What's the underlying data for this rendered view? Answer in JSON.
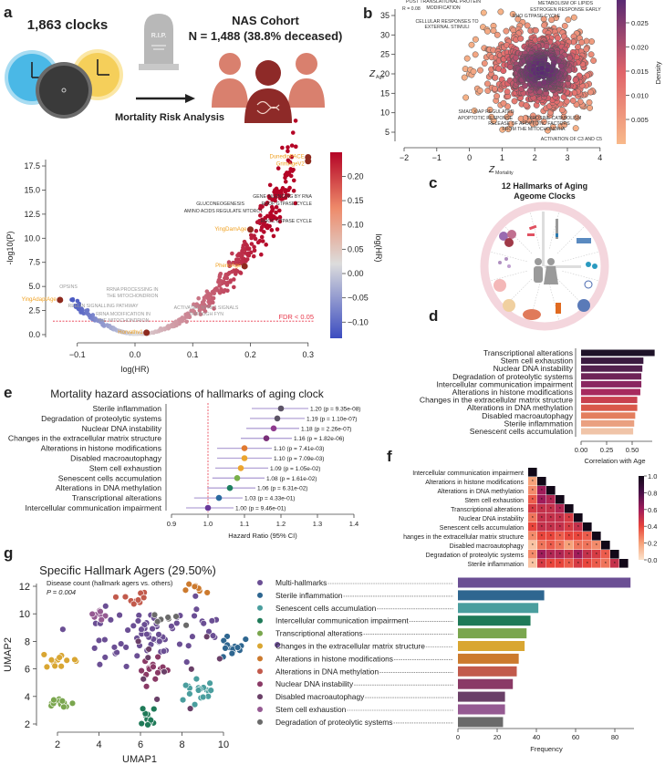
{
  "panel_labels": {
    "a": "a",
    "b": "b",
    "c": "c",
    "d": "d",
    "e": "e",
    "f": "f",
    "g": "g"
  },
  "panel_a": {
    "clocks_label": "1,863 clocks",
    "tombstone_text": "R.I.P.",
    "cohort_title": "NAS Cohort",
    "cohort_n": "N = 1,488 (38.8% deceased)",
    "caption": "Mortality Risk Analysis",
    "colors": {
      "clock_blue": "#4ab8e6",
      "clock_dark": "#3a3a3a",
      "clock_yellow": "#f5cf5a",
      "person_light": "#d9806e",
      "person_dark": "#8e2a28"
    }
  },
  "panel_c": {
    "title_line1": "12 Hallmarks of Aging",
    "title_line2": "Ageome Clocks"
  },
  "chart_data": [
    {
      "id": "volcano",
      "type": "scatter",
      "xlabel": "log(HR)",
      "ylabel": "-log10(P)",
      "xlim": [
        -0.15,
        0.3
      ],
      "ylim": [
        0,
        18.5
      ],
      "xticks": [
        -0.1,
        0.0,
        0.1,
        0.2,
        0.3
      ],
      "xtick_labels": [
        "−0.1",
        "0.0",
        "0.1",
        "0.2",
        "0.3"
      ],
      "yticks": [
        0,
        2.5,
        5,
        7.5,
        10,
        12.5,
        15,
        17.5
      ],
      "ytick_labels": [
        "0.0",
        "2.5",
        "5.0",
        "7.5",
        "10.0",
        "12.5",
        "15.0",
        "17.5"
      ],
      "colorbar": {
        "label": "log(HR)",
        "ticks": [
          -0.1,
          -0.05,
          0,
          0.05,
          0.1,
          0.15,
          0.2
        ],
        "tick_labels": [
          "−0.10",
          "−0.05",
          "0.00",
          "0.05",
          "0.10",
          "0.15",
          "0.20"
        ],
        "low": "#3b4cc0",
        "mid": "#dcdcdc",
        "high": "#b40426"
      },
      "threshold": {
        "value": 1.4,
        "label": "FDR < 0.05",
        "color": "#e8374a"
      },
      "highlighted_clocks": [
        {
          "name": "DunedinPACE",
          "x": 0.3,
          "y": 18.4
        },
        {
          "name": "GrimAgeV2",
          "x": 0.3,
          "y": 18.0
        },
        {
          "name": "YingDamAge",
          "x": 0.2,
          "y": 10.9
        },
        {
          "name": "PhenoAge",
          "x": 0.19,
          "y": 7.1
        },
        {
          "name": "YingAdaptAge",
          "x": -0.13,
          "y": 3.6
        },
        {
          "name": "Horvathv1",
          "x": 0.02,
          "y": 0.2
        }
      ],
      "pathway_annotations": [
        "GENE SILENCING BY RNA",
        "GLUCONEOGENESIS",
        "RHOF GTPASE CYCLE",
        "AMINO ACIDS REGULATE MTORC1",
        "RHOC GTPASE CYCLE",
        "OPSINS",
        "RRNA PROCESSING IN",
        "THE MITOCHONDRION",
        "REELIN SIGNALLING PATHWAY",
        "RRNA MODIFICATION IN",
        "THE MITOCHONDRION",
        "ACTIVATED NTRK2 SIGNALS",
        "THROUGH FYN"
      ],
      "clock_label_color": "#f0a020"
    },
    {
      "id": "zscore_density",
      "type": "scatter",
      "xlabel": "Z",
      "xlabel_sub": "Mortality",
      "ylabel": "Z",
      "ylabel_sub": "Age",
      "xlim": [
        -2,
        4
      ],
      "ylim": [
        3,
        37
      ],
      "xticks": [
        -2,
        -1,
        0,
        1,
        2,
        3,
        4
      ],
      "xtick_labels": [
        "−2",
        "−1",
        "0",
        "1",
        "2",
        "3",
        "4"
      ],
      "yticks": [
        5,
        10,
        15,
        20,
        25,
        30,
        35
      ],
      "ytick_labels": [
        "5",
        "10",
        "15",
        "20",
        "25",
        "30",
        "35"
      ],
      "correlation": "R = 0.08",
      "cloud_center": [
        2.2,
        21
      ],
      "colorbar": {
        "label": "Density",
        "ticks": [
          0.005,
          0.01,
          0.015,
          0.02,
          0.025
        ],
        "tick_labels": [
          "0.005",
          "0.010",
          "0.015",
          "0.020",
          "0.025"
        ],
        "low": "#f8b98a",
        "high": "#5a2a72"
      },
      "annotations": [
        "POST TRANSLATIONAL PROTEIN",
        "MODIFICATION",
        "METABOLISM OF LIPIDS",
        "ESTROGEN RESPONSE EARLY",
        "RHO GTPASE CYCLE",
        "CELLULAR RESPONSES TO",
        "EXTERNAL STIMULI",
        "SMAC XIAP REGULATED",
        "APOPTOTIC RESPONSE",
        "TYROSINE CATABOLISM",
        "RELEASE OF APOPTOTIC FACTORS",
        "FROM THE MITOCHONDRIA",
        "ACTIVATION OF C3 AND C5"
      ]
    },
    {
      "id": "correlation_with_age",
      "type": "bar",
      "orientation": "horizontal",
      "categories": [
        "Transcriptional alterations",
        "Stem cell exhaustion",
        "Nuclear DNA instability",
        "Degradation of proteolytic systems",
        "Intercellular communication impairment",
        "Alterations in histone modifications",
        "Changes in the extracellular matrix structure",
        "Alterations in DNA methylation",
        "Disabled macroautophagy",
        "Sterile inflammation",
        "Senescent cells accumulation"
      ],
      "values": [
        0.72,
        0.61,
        0.6,
        0.59,
        0.59,
        0.58,
        0.55,
        0.55,
        0.53,
        0.52,
        0.51
      ],
      "colors": [
        "#1e1228",
        "#3a1a40",
        "#52204e",
        "#6e2458",
        "#8a2660",
        "#a72a5e",
        "#c8404e",
        "#d9584a",
        "#e37e5e",
        "#eaa080",
        "#f0c4a8"
      ],
      "xlabel": "Correlation with Age",
      "xticks": [
        0,
        0.25,
        0.5
      ],
      "xtick_labels": [
        "0.00",
        "0.25",
        "0.50"
      ]
    },
    {
      "id": "forest",
      "type": "scatter",
      "title": "Mortality hazard associations of hallmarks of aging clock",
      "xlabel": "Hazard Ratio (95% CI)",
      "xlim": [
        0.9,
        1.4
      ],
      "xticks": [
        0.9,
        1.0,
        1.1,
        1.2,
        1.3,
        1.4
      ],
      "xtick_labels": [
        "0.9",
        "1.0",
        "1.1",
        "1.2",
        "1.3",
        "1.4"
      ],
      "reference_line": 1.0,
      "rows": [
        {
          "name": "Sterile inflammation",
          "hr": 1.2,
          "lo": 1.12,
          "hi": 1.275,
          "label": "1.20 (p = 9.35e-08)",
          "color": "#5c5466"
        },
        {
          "name": "Degradation of proteolytic systems",
          "hr": 1.19,
          "lo": 1.115,
          "hi": 1.265,
          "label": "1.19 (p = 1.10e-07)",
          "color": "#5c5466"
        },
        {
          "name": "Nuclear DNA instability",
          "hr": 1.18,
          "lo": 1.105,
          "hi": 1.25,
          "label": "1.18 (p = 2.26e-07)",
          "color": "#8e3a8e"
        },
        {
          "name": "Changes in the extracellular matrix structure",
          "hr": 1.16,
          "lo": 1.09,
          "hi": 1.23,
          "label": "1.16 (p = 1.82e-06)",
          "color": "#7a2f78"
        },
        {
          "name": "Alterations in histone modifications",
          "hr": 1.1,
          "lo": 1.025,
          "hi": 1.175,
          "label": "1.10 (p = 7.41e-03)",
          "color": "#e07a30"
        },
        {
          "name": "Disabled macroautophagy",
          "hr": 1.1,
          "lo": 1.025,
          "hi": 1.175,
          "label": "1.10 (p = 7.09e-03)",
          "color": "#eba52e"
        },
        {
          "name": "Stem cell exhaustion",
          "hr": 1.09,
          "lo": 1.02,
          "hi": 1.165,
          "label": "1.09 (p = 1.05e-02)",
          "color": "#eba52e"
        },
        {
          "name": "Senescent cells accumulation",
          "hr": 1.08,
          "lo": 1.012,
          "hi": 1.155,
          "label": "1.08 (p = 1.61e-02)",
          "color": "#7ab04a"
        },
        {
          "name": "Alterations in DNA methylation",
          "hr": 1.06,
          "lo": 0.998,
          "hi": 1.13,
          "label": "1.06 (p = 6.31e-02)",
          "color": "#1e8060"
        },
        {
          "name": "Transcriptional alterations",
          "hr": 1.03,
          "lo": 0.962,
          "hi": 1.095,
          "label": "1.03 (p = 4.33e-01)",
          "color": "#2a6aa0"
        },
        {
          "name": "Intercellular communication impairment",
          "hr": 1.0,
          "lo": 0.94,
          "hi": 1.07,
          "label": "1.00 (p = 9.46e-01)",
          "color": "#6a3a9a"
        }
      ],
      "ci_color": "#b3a3d6",
      "reference_color": "#e8374a"
    },
    {
      "id": "hallmark_correlation_heatmap",
      "type": "heatmap",
      "labels": [
        "Intercellular communication impairment",
        "Alterations in histone modifications",
        "Alterations in DNA methylation",
        "Stem cell exhaustion",
        "Transcriptional alterations",
        "Nuclear DNA instability",
        "Senescent cells accumulation",
        "hanges in the extracellular matrix structure",
        "Disabled macroautophagy",
        "Degradation of proteolytic systems",
        "Sterile inflammation"
      ],
      "lower_triangle": [
        [
          1.0
        ],
        [
          0.2,
          1.0
        ],
        [
          0.25,
          0.6,
          1.0
        ],
        [
          0.35,
          0.6,
          0.55,
          1.0
        ],
        [
          0.45,
          0.5,
          0.5,
          0.55,
          1.0
        ],
        [
          0.3,
          0.5,
          0.5,
          0.5,
          0.45,
          1.0
        ],
        [
          0.4,
          0.5,
          0.5,
          0.5,
          0.45,
          0.5,
          1.0
        ],
        [
          0.25,
          0.4,
          0.4,
          0.35,
          0.4,
          0.4,
          0.35,
          1.0
        ],
        [
          0.1,
          0.3,
          0.35,
          0.3,
          0.2,
          0.3,
          0.3,
          0.25,
          1.0
        ],
        [
          0.25,
          0.6,
          0.55,
          0.55,
          0.5,
          0.6,
          0.5,
          0.45,
          0.35,
          1.0
        ],
        [
          0.1,
          0.45,
          0.4,
          0.4,
          0.35,
          0.45,
          0.4,
          0.35,
          0.3,
          0.5,
          1.0
        ]
      ],
      "significance_marker": "*",
      "colorbar": {
        "ticks": [
          0,
          0.2,
          0.4,
          0.6,
          0.8,
          1.0
        ],
        "tick_labels": [
          "0.0",
          "0.2",
          "0.4",
          "0.6",
          "0.8",
          "1.0"
        ]
      },
      "colormap": [
        "#fbe3cc",
        "#f6a27a",
        "#e8453c",
        "#a01c5a",
        "#4a1048",
        "#120818"
      ]
    },
    {
      "id": "umap",
      "type": "scatter",
      "title": "Specific Hallmark Agers (29.50%)",
      "subtitle": "Disease count (hallmark agers vs. others)",
      "pvalue": "P = 0.004",
      "xlabel": "UMAP1",
      "ylabel": "UMAP2",
      "xticks": [
        2,
        4,
        6,
        8,
        10
      ],
      "xtick_labels": [
        "2",
        "4",
        "6",
        "8",
        "10"
      ],
      "yticks": [
        2,
        4,
        6,
        8,
        10,
        12
      ],
      "ytick_labels": [
        "2",
        "4",
        "6",
        "8",
        "10",
        "12"
      ],
      "clusters": [
        {
          "group": 0,
          "cx": 6.6,
          "cy": 8.3,
          "sx": 1.6,
          "sy": 1.0,
          "n": 70
        },
        {
          "group": 1,
          "cx": 10.4,
          "cy": 7.7,
          "sx": 0.35,
          "sy": 0.35,
          "n": 14
        },
        {
          "group": 2,
          "cx": 8.8,
          "cy": 4.3,
          "sx": 0.35,
          "sy": 0.5,
          "n": 18
        },
        {
          "group": 3,
          "cx": 6.3,
          "cy": 2.6,
          "sx": 0.25,
          "sy": 0.35,
          "n": 12
        },
        {
          "group": 4,
          "cx": 2.1,
          "cy": 3.4,
          "sx": 0.35,
          "sy": 0.25,
          "n": 14
        },
        {
          "group": 5,
          "cx": 2.2,
          "cy": 6.6,
          "sx": 0.5,
          "sy": 0.3,
          "n": 12
        },
        {
          "group": 6,
          "cx": 8.7,
          "cy": 12.1,
          "sx": 0.3,
          "sy": 0.2,
          "n": 9
        },
        {
          "group": 7,
          "cx": 5.7,
          "cy": 11.2,
          "sx": 0.5,
          "sy": 0.2,
          "n": 10
        },
        {
          "group": 8,
          "cx": 6.5,
          "cy": 6.1,
          "sx": 0.35,
          "sy": 0.45,
          "n": 15
        },
        {
          "group": 9,
          "cx": 7.2,
          "cy": 7.5,
          "sx": 1.4,
          "sy": 1.8,
          "n": 10
        },
        {
          "group": 10,
          "cx": 3.9,
          "cy": 9.9,
          "sx": 0.25,
          "sy": 0.2,
          "n": 8
        },
        {
          "group": 11,
          "cx": 7.0,
          "cy": 9.6,
          "sx": 0.5,
          "sy": 0.3,
          "n": 8
        }
      ]
    },
    {
      "id": "hallmark_ager_frequency",
      "type": "bar",
      "orientation": "horizontal",
      "categories": [
        "Multi-hallmarks",
        "Sterile inflammation",
        "Senescent cells accumulation",
        "Intercellular communication impairment",
        "Transcriptional alterations",
        "Changes in the extracellular matrix structure",
        "Alterations in histone modifications",
        "Alterations in DNA methylation",
        "Nuclear DNA instability",
        "Disabled macroautophagy",
        "Stem cell exhaustion",
        "Degradation of proteolytic systems"
      ],
      "values": [
        88,
        44,
        41,
        37,
        35,
        34,
        31,
        30,
        28,
        24,
        24,
        23
      ],
      "colors": [
        "#6b4f94",
        "#2e6690",
        "#4a9e9e",
        "#1f7a58",
        "#7aa64e",
        "#d9a632",
        "#cc7a2e",
        "#c25a4c",
        "#8a3a66",
        "#6a4068",
        "#955a92",
        "#6a6a6a"
      ],
      "xlabel": "Frequency",
      "xticks": [
        0,
        20,
        40,
        60,
        80
      ],
      "xtick_labels": [
        "0",
        "20",
        "40",
        "60",
        "80"
      ]
    }
  ]
}
